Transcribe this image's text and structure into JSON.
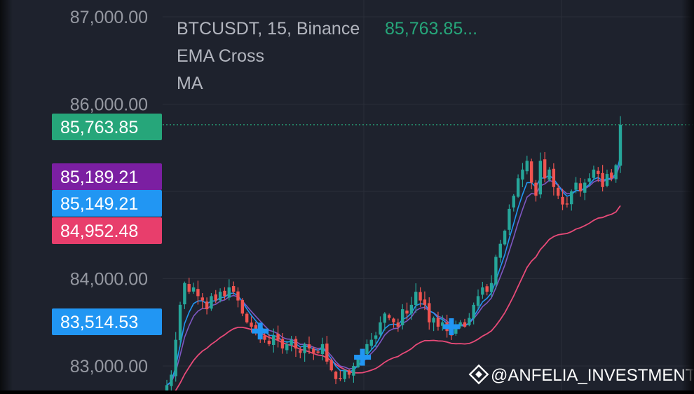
{
  "header": {
    "symbol": "BTCUSDT, 15, Binance",
    "last_price": "85,763.85...",
    "indicator_1": "EMA Cross",
    "indicator_2": "MA"
  },
  "watermark": {
    "text": "@ANFELIA_INVESTMENT",
    "icon": "binance-logo-icon"
  },
  "colors": {
    "background": "#1e222d",
    "grid": "#2a2e39",
    "bull": "#26a69a",
    "bear": "#ef5350",
    "ema_fast": "#2196f3",
    "ema_slow": "#7e57c2",
    "ma": "#e84a78",
    "last_price_label": "#26a67a",
    "label_purple": "#7b1fa2",
    "label_blue": "#2196f3",
    "label_pink": "#e83e6c"
  },
  "chart_data": {
    "type": "candlestick",
    "ylim": [
      82800,
      87200
    ],
    "y_ticks": [
      83000,
      84000,
      86000,
      87000
    ],
    "y_tick_labels": [
      "83,000.00",
      "84,000.00",
      "86,000.00",
      "87,000.00"
    ],
    "price_labels": [
      {
        "name": "last-price",
        "value": 85763.85,
        "text": "85,763.85",
        "color": "#26a67a"
      },
      {
        "name": "ema-slow",
        "value": 85189.21,
        "text": "85,189.21",
        "color": "#7b1fa2"
      },
      {
        "name": "ema-fast",
        "value": 85149.21,
        "text": "85,149.21",
        "color": "#2196f3"
      },
      {
        "name": "ma",
        "value": 84952.48,
        "text": "84,952.48",
        "color": "#e83e6c"
      },
      {
        "name": "cross-marker",
        "value": 83514.53,
        "text": "83,514.53",
        "color": "#2196f3"
      }
    ],
    "cross_markers": [
      {
        "index": 21,
        "price": 83400
      },
      {
        "index": 44,
        "price": 83100
      },
      {
        "index": 64,
        "price": 83450
      }
    ],
    "close_path": [
      82780,
      82900,
      83300,
      83700,
      83950,
      83850,
      83900,
      83800,
      83750,
      83650,
      83800,
      83750,
      83850,
      83800,
      83900,
      83850,
      83750,
      83600,
      83500,
      83450,
      83400,
      83350,
      83300,
      83250,
      83350,
      83300,
      83200,
      83250,
      83300,
      83200,
      83150,
      83250,
      83200,
      83150,
      83150,
      83250,
      83050,
      82950,
      82850,
      82850,
      82950,
      82900,
      83000,
      83100,
      83150,
      83250,
      83300,
      83350,
      83500,
      83600,
      83550,
      83500,
      83450,
      83650,
      83600,
      83700,
      83850,
      83750,
      83700,
      83500,
      83550,
      83450,
      83500,
      83400,
      83350,
      83450,
      83500,
      83450,
      83550,
      83700,
      83800,
      83900,
      83850,
      83950,
      84250,
      84400,
      84550,
      84800,
      84950,
      85150,
      85250,
      85350,
      85100,
      84950,
      85350,
      85150,
      85250,
      85050,
      84950,
      84850,
      84850,
      85000,
      85100,
      85000,
      85100,
      85150,
      85250,
      85200,
      85050,
      85200,
      85150,
      85300,
      85764
    ]
  }
}
